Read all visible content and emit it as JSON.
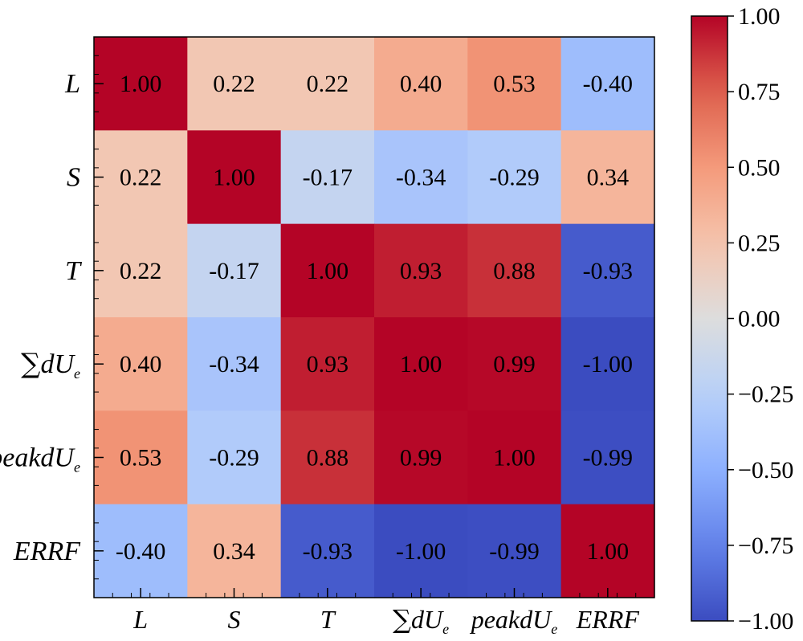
{
  "chart_data": {
    "type": "heatmap",
    "title": "",
    "labels": [
      {
        "id": "L",
        "main": "L",
        "sub": "",
        "sum": false
      },
      {
        "id": "S",
        "main": "S",
        "sub": "",
        "sum": false
      },
      {
        "id": "T",
        "main": "T",
        "sub": "",
        "sum": false
      },
      {
        "id": "sum_dUe",
        "main": "dU",
        "sub": "e",
        "sum": true
      },
      {
        "id": "peak_dUe",
        "main": "peakdU",
        "sub": "e",
        "sum": false
      },
      {
        "id": "ERRF",
        "main": "ERRF",
        "sub": "",
        "sum": false
      }
    ],
    "matrix": [
      [
        1.0,
        0.22,
        0.22,
        0.4,
        0.53,
        -0.4
      ],
      [
        0.22,
        1.0,
        -0.17,
        -0.34,
        -0.29,
        0.34
      ],
      [
        0.22,
        -0.17,
        1.0,
        0.93,
        0.88,
        -0.93
      ],
      [
        0.4,
        -0.34,
        0.93,
        1.0,
        0.99,
        -1.0
      ],
      [
        0.53,
        -0.29,
        0.88,
        0.99,
        1.0,
        -0.99
      ],
      [
        -0.4,
        0.34,
        -0.93,
        -1.0,
        -0.99,
        1.0
      ]
    ],
    "value_format": "0.00",
    "colormap": "coolwarm",
    "vmin": -1.0,
    "vmax": 1.0,
    "colorbar": {
      "ticks": [
        1.0,
        0.75,
        0.5,
        0.25,
        0.0,
        -0.25,
        -0.5,
        -0.75,
        -1.0
      ],
      "tick_labels": [
        "1.00",
        "0.75",
        "0.50",
        "0.25",
        "0.00",
        "−0.25",
        "−0.50",
        "−0.75",
        "−1.00"
      ]
    },
    "sum_symbol": "∑"
  }
}
